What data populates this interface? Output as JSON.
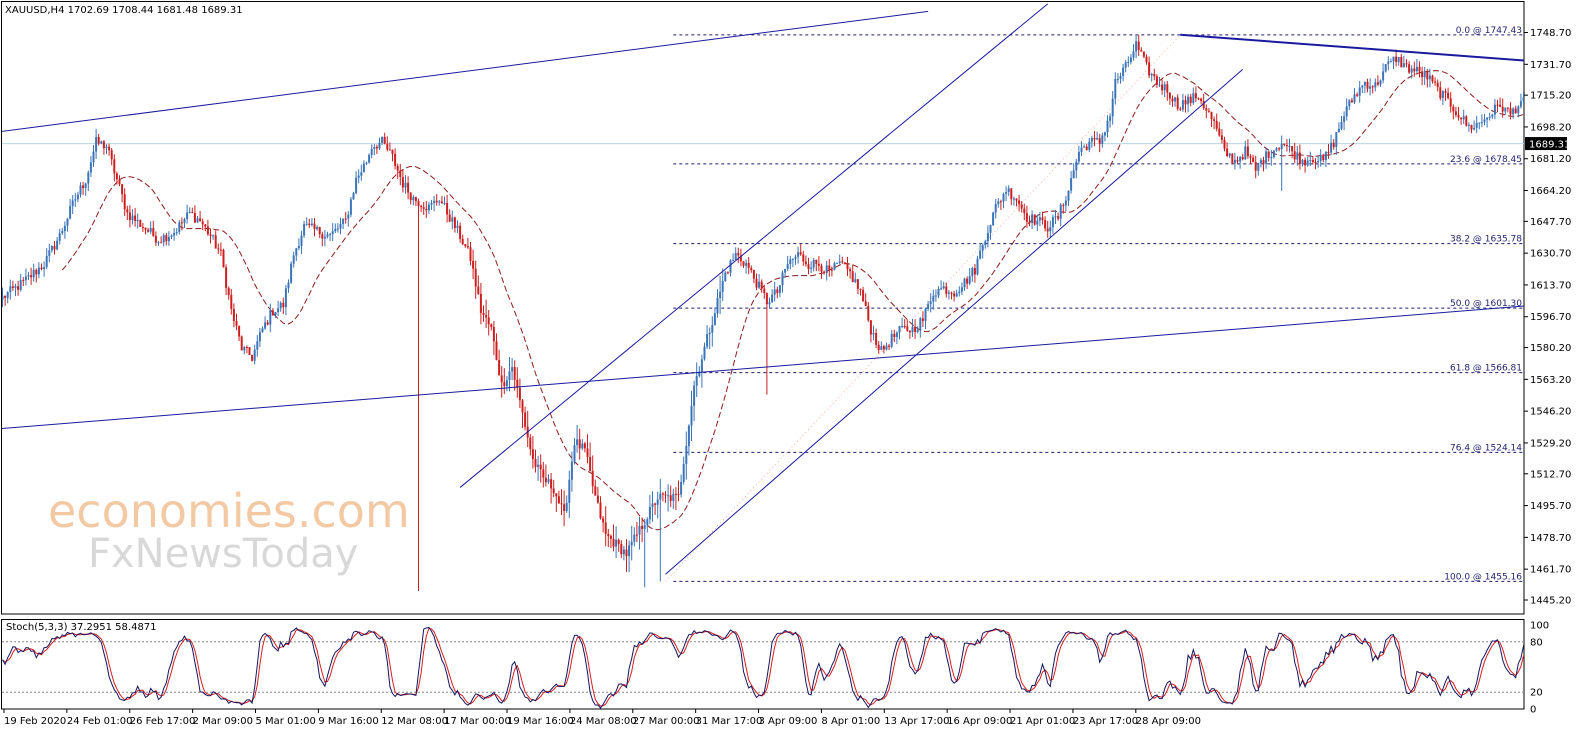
{
  "chart_data": {
    "type": "candlestick",
    "symbol_header": "XAUUSD,H4  1702.69 1708.44 1681.48 1689.31",
    "current_price_label": "1689.31",
    "ylim": [
      1445.2,
      1757
    ],
    "y_ticks": [
      "1748.70",
      "1731.70",
      "1715.20",
      "1698.20",
      "1681.20",
      "1664.20",
      "1647.70",
      "1630.70",
      "1613.70",
      "1596.70",
      "1580.20",
      "1563.20",
      "1546.20",
      "1529.20",
      "1512.70",
      "1495.70",
      "1478.70",
      "1461.70",
      "1445.20"
    ],
    "x_ticks": [
      "19 Feb 2020",
      "24 Feb 01:00",
      "26 Feb 17:00",
      "2 Mar 09:00",
      "5 Mar 01:00",
      "9 Mar 16:00",
      "12 Mar 08:00",
      "17 Mar 00:00",
      "19 Mar 16:00",
      "24 Mar 08:00",
      "27 Mar 00:00",
      "31 Mar 17:00",
      "3 Apr 09:00",
      "8 Apr 01:00",
      "13 Apr 17:00",
      "16 Apr 09:00",
      "21 Apr 01:00",
      "23 Apr 17:00",
      "28 Apr 09:00"
    ],
    "fibonacci_levels": [
      {
        "label": "0.0 @ 1747.43",
        "price": 1747.43
      },
      {
        "label": "23.6 @ 1678.45",
        "price": 1678.45
      },
      {
        "label": "38.2 @ 1635.78",
        "price": 1635.78
      },
      {
        "label": "50.0 @ 1601.30",
        "price": 1601.3
      },
      {
        "label": "61.8 @ 1566.81",
        "price": 1566.81
      },
      {
        "label": "76.4 @ 1524.14",
        "price": 1524.14
      },
      {
        "label": "100.0 @ 1455.16",
        "price": 1455.16
      }
    ],
    "price_anchors": [
      [
        0,
        1607
      ],
      [
        8,
        1615
      ],
      [
        16,
        1625
      ],
      [
        22,
        1640
      ],
      [
        28,
        1660
      ],
      [
        32,
        1670
      ],
      [
        36,
        1690
      ],
      [
        40,
        1688
      ],
      [
        44,
        1670
      ],
      [
        48,
        1652
      ],
      [
        54,
        1645
      ],
      [
        60,
        1638
      ],
      [
        66,
        1642
      ],
      [
        72,
        1652
      ],
      [
        76,
        1648
      ],
      [
        80,
        1640
      ],
      [
        84,
        1630
      ],
      [
        88,
        1600
      ],
      [
        92,
        1580
      ],
      [
        96,
        1575
      ],
      [
        100,
        1590
      ],
      [
        104,
        1600
      ],
      [
        108,
        1603
      ],
      [
        112,
        1630
      ],
      [
        116,
        1645
      ],
      [
        120,
        1643
      ],
      [
        126,
        1640
      ],
      [
        132,
        1648
      ],
      [
        136,
        1670
      ],
      [
        140,
        1680
      ],
      [
        142,
        1688
      ],
      [
        146,
        1690
      ],
      [
        150,
        1682
      ],
      [
        154,
        1668
      ],
      [
        158,
        1660
      ],
      [
        164,
        1655
      ],
      [
        168,
        1660
      ],
      [
        172,
        1650
      ],
      [
        176,
        1640
      ],
      [
        180,
        1628
      ],
      [
        184,
        1600
      ],
      [
        188,
        1590
      ],
      [
        192,
        1560
      ],
      [
        196,
        1570
      ],
      [
        200,
        1545
      ],
      [
        204,
        1520
      ],
      [
        208,
        1510
      ],
      [
        212,
        1505
      ],
      [
        216,
        1490
      ],
      [
        220,
        1530
      ],
      [
        224,
        1525
      ],
      [
        228,
        1500
      ],
      [
        232,
        1480
      ],
      [
        236,
        1475
      ],
      [
        240,
        1470
      ],
      [
        244,
        1480
      ],
      [
        248,
        1490
      ],
      [
        252,
        1500
      ],
      [
        256,
        1500
      ],
      [
        260,
        1500
      ],
      [
        262,
        1520
      ],
      [
        266,
        1560
      ],
      [
        270,
        1580
      ],
      [
        274,
        1600
      ],
      [
        278,
        1620
      ],
      [
        282,
        1630
      ],
      [
        286,
        1625
      ],
      [
        290,
        1615
      ],
      [
        294,
        1605
      ],
      [
        298,
        1610
      ],
      [
        302,
        1625
      ],
      [
        306,
        1630
      ],
      [
        310,
        1625
      ],
      [
        314,
        1625
      ],
      [
        318,
        1620
      ],
      [
        322,
        1625
      ],
      [
        326,
        1620
      ],
      [
        330,
        1610
      ],
      [
        334,
        1590
      ],
      [
        338,
        1578
      ],
      [
        342,
        1585
      ],
      [
        346,
        1590
      ],
      [
        350,
        1590
      ],
      [
        354,
        1595
      ],
      [
        358,
        1610
      ],
      [
        362,
        1612
      ],
      [
        366,
        1610
      ],
      [
        370,
        1615
      ],
      [
        374,
        1622
      ],
      [
        378,
        1640
      ],
      [
        382,
        1655
      ],
      [
        386,
        1665
      ],
      [
        390,
        1660
      ],
      [
        394,
        1650
      ],
      [
        398,
        1648
      ],
      [
        402,
        1645
      ],
      [
        406,
        1650
      ],
      [
        410,
        1665
      ],
      [
        414,
        1685
      ],
      [
        418,
        1690
      ],
      [
        422,
        1690
      ],
      [
        426,
        1705
      ],
      [
        428,
        1722
      ],
      [
        432,
        1730
      ],
      [
        436,
        1742
      ],
      [
        440,
        1730
      ],
      [
        444,
        1722
      ],
      [
        448,
        1718
      ],
      [
        452,
        1710
      ],
      [
        456,
        1712
      ],
      [
        460,
        1715
      ],
      [
        464,
        1705
      ],
      [
        466,
        1700
      ],
      [
        470,
        1685
      ],
      [
        474,
        1680
      ],
      [
        478,
        1685
      ],
      [
        482,
        1675
      ],
      [
        484,
        1680
      ],
      [
        488,
        1685
      ],
      [
        492,
        1690
      ],
      [
        496,
        1685
      ],
      [
        500,
        1680
      ],
      [
        504,
        1682
      ],
      [
        508,
        1680
      ],
      [
        512,
        1690
      ],
      [
        516,
        1705
      ],
      [
        520,
        1715
      ],
      [
        524,
        1722
      ],
      [
        528,
        1720
      ],
      [
        532,
        1730
      ],
      [
        536,
        1735
      ],
      [
        540,
        1730
      ],
      [
        544,
        1728
      ],
      [
        548,
        1725
      ],
      [
        552,
        1718
      ],
      [
        556,
        1712
      ],
      [
        560,
        1705
      ],
      [
        564,
        1698
      ],
      [
        568,
        1700
      ],
      [
        572,
        1705
      ],
      [
        576,
        1710
      ],
      [
        580,
        1705
      ],
      [
        584,
        1712
      ],
      [
        588,
        1708
      ],
      [
        591,
        1702
      ],
      [
        593,
        1689.31
      ]
    ],
    "trendlines": [
      {
        "p1": [
          -2,
          1695.5
        ],
        "p2": [
          356,
          1760
        ]
      },
      {
        "p1": [
          -2,
          1536.7
        ],
        "p2": [
          760,
          1622
        ]
      },
      {
        "p1": [
          176,
          1505.4
        ],
        "p2": [
          402,
          1764
        ]
      },
      {
        "p1": [
          255,
          1459
        ],
        "p2": [
          477,
          1729
        ]
      },
      {
        "p1": [
          453,
          1747.5
        ],
        "p2": [
          602,
          1732
        ]
      }
    ],
    "dotted_diagonal": {
      "p1": [
        255,
        1455.16
      ],
      "p2": [
        453,
        1747.43
      ]
    },
    "fib_start_bar": 258,
    "ma_period": 24,
    "stochastic": {
      "label": "Stoch(5,3,3) 37.2951 58.4871",
      "levels": [
        0,
        20,
        80,
        100
      ],
      "k_value": 37.2951,
      "d_value": 58.4871
    },
    "colors": {
      "bull": "#3b75b8",
      "bear": "#cc1f1f",
      "trendline": "#1a1a9e",
      "fib": "#1f1f6e",
      "ma": "#8b1a1a",
      "stoch_main": "#16165e",
      "stoch_signal": "#d62020",
      "price_tag_bg": "#000000"
    },
    "watermark": {
      "line1": "economies.com",
      "line2": "FxNewsToday"
    }
  }
}
